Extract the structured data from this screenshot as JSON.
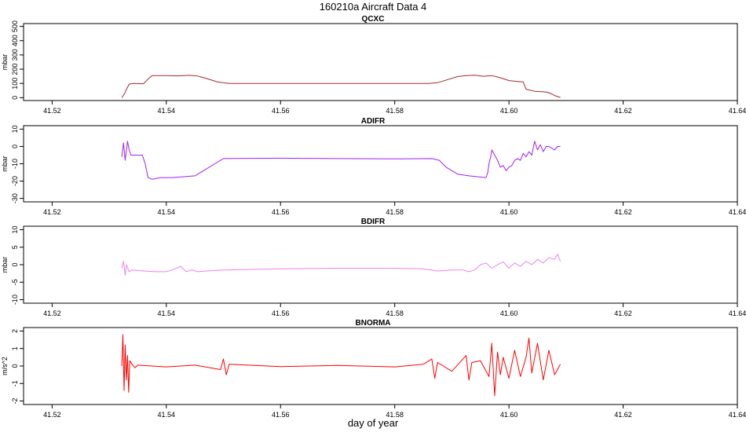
{
  "figure": {
    "title": "160210a   Aircraft Data 4",
    "xlabel": "day of year"
  },
  "chart_data": [
    {
      "type": "line",
      "title": "QCXC",
      "ylabel": "mbar",
      "color": "#a52a2a",
      "xlim": [
        41.515,
        41.64
      ],
      "ylim": [
        -20,
        520
      ],
      "xticks": [
        41.52,
        41.54,
        41.56,
        41.58,
        41.6,
        41.62,
        41.64
      ],
      "xtick_labels": [
        "41.52",
        "41.54",
        "41.56",
        "41.58",
        "41.60",
        "41.62",
        "41.64"
      ],
      "yticks": [
        0,
        100,
        200,
        300,
        400,
        500
      ],
      "ytick_labels": [
        "0",
        "100",
        "200",
        "300",
        "400",
        "500"
      ],
      "series": [
        {
          "x": [
            41.5322,
            41.5327,
            41.5331,
            41.5335,
            41.5342,
            41.536,
            41.5368,
            41.5375,
            41.54,
            41.542,
            41.544,
            41.5455,
            41.547,
            41.549,
            41.551,
            41.56,
            41.57,
            41.58,
            41.586,
            41.5875,
            41.5895,
            41.591,
            41.5925,
            41.594,
            41.5955,
            41.597,
            41.5985,
            41.6,
            41.6025,
            41.603,
            41.6045,
            41.6065,
            41.6073,
            41.608,
            41.609
          ],
          "y": [
            0,
            30,
            65,
            95,
            100,
            98,
            130,
            155,
            155,
            153,
            157,
            152,
            135,
            110,
            100,
            100,
            100,
            100,
            100,
            105,
            130,
            148,
            155,
            158,
            150,
            155,
            140,
            120,
            110,
            60,
            45,
            40,
            30,
            15,
            2
          ]
        }
      ]
    },
    {
      "type": "line",
      "title": "ADIFR",
      "ylabel": "mbar",
      "color": "#a020f0",
      "xlim": [
        41.515,
        41.64
      ],
      "ylim": [
        -32,
        12
      ],
      "xticks": [
        41.52,
        41.54,
        41.56,
        41.58,
        41.6,
        41.62,
        41.64
      ],
      "xtick_labels": [
        "41.52",
        "41.54",
        "41.56",
        "41.58",
        "41.60",
        "41.62",
        "41.64"
      ],
      "yticks": [
        -30,
        -20,
        -10,
        0,
        10
      ],
      "ytick_labels": [
        "-30",
        "-20",
        "-10",
        "0",
        "10"
      ],
      "series": [
        {
          "x": [
            41.5322,
            41.5325,
            41.5328,
            41.5332,
            41.5335,
            41.5338,
            41.5345,
            41.5352,
            41.5358,
            41.5363,
            41.5368,
            41.5375,
            41.539,
            41.541,
            41.543,
            41.545,
            41.5465,
            41.5485,
            41.55,
            41.56,
            41.57,
            41.58,
            41.5865,
            41.5878,
            41.589,
            41.591,
            41.593,
            41.5945,
            41.596,
            41.5963,
            41.5965,
            41.5968,
            41.597,
            41.5975,
            41.598,
            41.5985,
            41.599,
            41.5995,
            41.6,
            41.6005,
            41.601,
            41.6015,
            41.602,
            41.6025,
            41.603,
            41.6035,
            41.604,
            41.6045,
            41.605,
            41.6055,
            41.606,
            41.6065,
            41.607,
            41.6075,
            41.608,
            41.6085,
            41.609
          ],
          "y": [
            -6,
            2,
            -8,
            3,
            -2,
            -5,
            -5,
            -5,
            -5,
            -10,
            -18,
            -19,
            -18,
            -18,
            -17.5,
            -17,
            -14,
            -10,
            -7,
            -6.8,
            -7,
            -7.2,
            -7,
            -8,
            -12,
            -16,
            -17,
            -17.5,
            -18,
            -15,
            -10,
            -6,
            -2,
            -5,
            -8,
            -12,
            -11,
            -14,
            -12,
            -11,
            -8,
            -7,
            -8,
            -4,
            -6,
            -3,
            -5,
            3,
            -2,
            1,
            -3,
            0,
            0,
            -1,
            -2,
            0,
            0
          ]
        }
      ]
    },
    {
      "type": "line",
      "title": "BDIFR",
      "ylabel": "mbar",
      "color": "#ee82ee",
      "xlim": [
        41.515,
        41.64
      ],
      "ylim": [
        -11,
        11
      ],
      "xticks": [
        41.52,
        41.54,
        41.56,
        41.58,
        41.6,
        41.62,
        41.64
      ],
      "xtick_labels": [
        "41.52",
        "41.54",
        "41.56",
        "41.58",
        "41.60",
        "41.62",
        "41.64"
      ],
      "yticks": [
        -10,
        -5,
        0,
        5,
        10
      ],
      "ytick_labels": [
        "-10",
        "-5",
        "0",
        "5",
        "10"
      ],
      "series": [
        {
          "x": [
            41.5322,
            41.5325,
            41.5328,
            41.533,
            41.5335,
            41.534,
            41.536,
            41.538,
            41.54,
            41.541,
            41.5425,
            41.5435,
            41.5445,
            41.5455,
            41.547,
            41.55,
            41.56,
            41.57,
            41.58,
            41.585,
            41.5875,
            41.59,
            41.592,
            41.593,
            41.594,
            41.595,
            41.596,
            41.597,
            41.598,
            41.599,
            41.6,
            41.601,
            41.602,
            41.603,
            41.604,
            41.605,
            41.606,
            41.607,
            41.608,
            41.6085,
            41.609
          ],
          "y": [
            -1,
            1,
            -3,
            0,
            -2,
            -1.5,
            -1.8,
            -2,
            -2,
            -1.5,
            -0.5,
            -2,
            -1.5,
            -2,
            -1.8,
            -1.5,
            -1.2,
            -1,
            -1,
            -1.2,
            -1.8,
            -1.5,
            -1.5,
            -2,
            -1.5,
            0,
            0.5,
            -1,
            0,
            0.8,
            -1,
            0.5,
            -0.5,
            1,
            0,
            1.5,
            0.5,
            2,
            1.5,
            3,
            1
          ]
        }
      ]
    },
    {
      "type": "line",
      "title": "BNORMA",
      "ylabel": "m/s^2",
      "color": "#ff0000",
      "xlim": [
        41.515,
        41.64
      ],
      "ylim": [
        -2.2,
        2.2
      ],
      "xticks": [
        41.52,
        41.54,
        41.56,
        41.58,
        41.6,
        41.62,
        41.64
      ],
      "xtick_labels": [
        "41.52",
        "41.54",
        "41.56",
        "41.58",
        "41.60",
        "41.62",
        "41.64"
      ],
      "yticks": [
        -2,
        -1,
        0,
        1,
        2
      ],
      "ytick_labels": [
        "-2",
        "-1",
        "0",
        "1",
        "2"
      ],
      "series": [
        {
          "x": [
            41.5322,
            41.5324,
            41.5326,
            41.5328,
            41.533,
            41.5332,
            41.5334,
            41.5336,
            41.534,
            41.5345,
            41.535,
            41.54,
            41.545,
            41.5495,
            41.55,
            41.5505,
            41.551,
            41.56,
            41.57,
            41.58,
            41.585,
            41.5865,
            41.587,
            41.5875,
            41.59,
            41.5925,
            41.593,
            41.5935,
            41.595,
            41.5965,
            41.597,
            41.5975,
            41.598,
            41.5985,
            41.599,
            41.6,
            41.601,
            41.602,
            41.603,
            41.6035,
            41.604,
            41.605,
            41.606,
            41.607,
            41.608,
            41.609
          ],
          "y": [
            0,
            1.8,
            -1.4,
            1.2,
            -0.8,
            0.6,
            -1.5,
            0.3,
            0.1,
            -0.1,
            0.05,
            -0.05,
            0.05,
            -0.2,
            0.4,
            -0.5,
            0.1,
            -0.03,
            0.03,
            -0.05,
            0.1,
            0.4,
            -0.7,
            0.2,
            -0.3,
            0.6,
            -0.8,
            0.2,
            0.3,
            -0.6,
            1.3,
            -1.7,
            0.8,
            -0.5,
            0.5,
            -0.7,
            0.9,
            -0.6,
            0.5,
            1.6,
            -0.4,
            1.3,
            -0.8,
            0.9,
            -0.5,
            0.1
          ]
        }
      ]
    }
  ]
}
